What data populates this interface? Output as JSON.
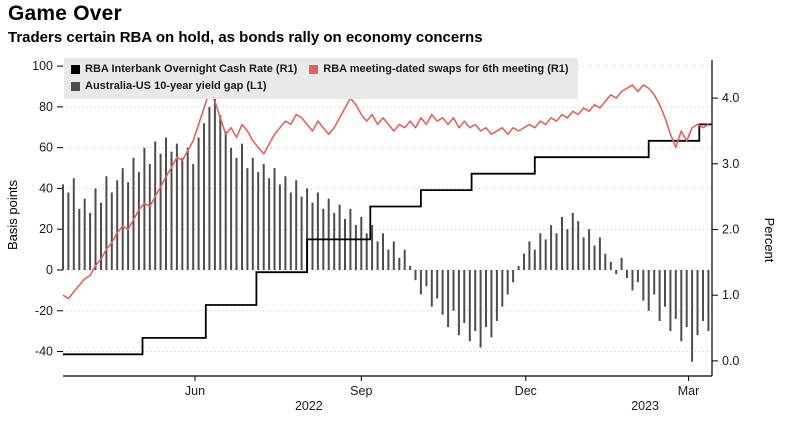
{
  "header": {
    "title": "Game Over",
    "subtitle": "Traders certain RBA on hold, as bonds rally on economy concerns"
  },
  "chart_data": {
    "type": "mixed",
    "title": "Game Over",
    "subtitle": "Traders certain RBA on hold, as bonds rally on economy concerns",
    "left_axis": {
      "label": "Basis points",
      "ticks": [
        -40,
        -20,
        0,
        20,
        40,
        60,
        80,
        100
      ],
      "range": [
        -52,
        103
      ]
    },
    "right_axis": {
      "label": "Percent",
      "ticks": [
        0,
        1,
        2,
        3,
        4
      ],
      "range": [
        -0.23,
        4.58
      ]
    },
    "x_axis": {
      "total_days": 359,
      "month_ticks": [
        {
          "day": 73,
          "label": "Jun"
        },
        {
          "day": 165,
          "label": "Sep"
        },
        {
          "day": 256,
          "label": "Dec"
        },
        {
          "day": 346,
          "label": "Mar"
        }
      ],
      "year_ticks": [
        {
          "day": 136,
          "label": "2022"
        },
        {
          "day": 322,
          "label": "2023"
        }
      ]
    },
    "series": [
      {
        "name": "RBA Interbank Overnight Cash Rate (R1)",
        "type": "step_line",
        "axis": "right",
        "unit": "percent",
        "color": "#000000",
        "steps": [
          {
            "day": 0,
            "rate": 0.1
          },
          {
            "day": 44,
            "rate": 0.35
          },
          {
            "day": 79,
            "rate": 0.85
          },
          {
            "day": 107,
            "rate": 1.35
          },
          {
            "day": 135,
            "rate": 1.85
          },
          {
            "day": 170,
            "rate": 2.35
          },
          {
            "day": 198,
            "rate": 2.6
          },
          {
            "day": 226,
            "rate": 2.85
          },
          {
            "day": 261,
            "rate": 3.1
          },
          {
            "day": 324,
            "rate": 3.35
          },
          {
            "day": 352,
            "rate": 3.6
          }
        ]
      },
      {
        "name": "RBA meeting-dated swaps for 6th meeting (R1)",
        "type": "line",
        "axis": "right",
        "unit": "percent",
        "color": "#e4625d",
        "x_start_day": 0,
        "x_step_days": 3,
        "values": [
          1.0,
          0.95,
          1.05,
          1.15,
          1.25,
          1.3,
          1.45,
          1.55,
          1.7,
          1.8,
          1.95,
          2.05,
          2.0,
          2.15,
          2.3,
          2.4,
          2.35,
          2.5,
          2.65,
          2.8,
          2.95,
          3.1,
          3.05,
          3.2,
          3.35,
          3.6,
          3.85,
          4.1,
          3.95,
          3.7,
          3.45,
          3.55,
          3.4,
          3.6,
          3.5,
          3.35,
          3.25,
          3.15,
          3.3,
          3.45,
          3.55,
          3.65,
          3.6,
          3.75,
          3.7,
          3.6,
          3.5,
          3.65,
          3.55,
          3.45,
          3.55,
          3.7,
          3.85,
          4.0,
          3.9,
          3.75,
          3.65,
          3.75,
          3.6,
          3.7,
          3.6,
          3.5,
          3.6,
          3.55,
          3.65,
          3.55,
          3.7,
          3.6,
          3.75,
          3.65,
          3.7,
          3.6,
          3.7,
          3.55,
          3.65,
          3.55,
          3.6,
          3.5,
          3.55,
          3.45,
          3.5,
          3.55,
          3.45,
          3.55,
          3.5,
          3.55,
          3.6,
          3.55,
          3.65,
          3.6,
          3.7,
          3.65,
          3.75,
          3.7,
          3.8,
          3.75,
          3.85,
          3.8,
          3.9,
          3.85,
          3.95,
          4.05,
          4.0,
          4.1,
          4.15,
          4.2,
          4.1,
          4.2,
          4.15,
          4.05,
          3.9,
          3.7,
          3.45,
          3.25,
          3.5,
          3.35,
          3.55,
          3.6,
          3.55,
          3.6
        ]
      },
      {
        "name": "Australia-US 10-year yield gap (L1)",
        "type": "bar",
        "axis": "left",
        "unit": "basis_points",
        "color": "#4d4d4d",
        "x_start_day": 0,
        "x_step_days": 3,
        "values": [
          42,
          38,
          45,
          30,
          35,
          28,
          40,
          33,
          46,
          38,
          44,
          50,
          43,
          55,
          48,
          60,
          52,
          63,
          57,
          65,
          58,
          62,
          55,
          60,
          52,
          65,
          72,
          80,
          85,
          76,
          68,
          60,
          55,
          62,
          50,
          55,
          48,
          52,
          45,
          50,
          42,
          46,
          38,
          44,
          36,
          40,
          33,
          38,
          30,
          35,
          28,
          32,
          25,
          30,
          22,
          26,
          18,
          22,
          14,
          18,
          10,
          14,
          6,
          10,
          2,
          -5,
          -12,
          -8,
          -18,
          -14,
          -22,
          -28,
          -20,
          -32,
          -26,
          -35,
          -30,
          -38,
          -28,
          -33,
          -25,
          -18,
          -12,
          -6,
          2,
          8,
          14,
          10,
          18,
          15,
          22,
          18,
          26,
          20,
          28,
          24,
          16,
          20,
          12,
          16,
          8,
          4,
          -2,
          6,
          -4,
          -10,
          -6,
          -15,
          -20,
          -12,
          -25,
          -18,
          -30,
          -24,
          -35,
          -28,
          -45,
          -32,
          -25,
          -30
        ]
      }
    ]
  }
}
